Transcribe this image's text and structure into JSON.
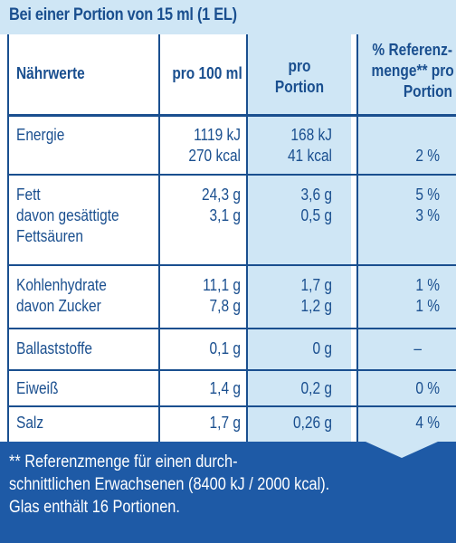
{
  "header": {
    "title": "Bei einer Portion von 15 ml (1 EL)"
  },
  "table": {
    "columns": [
      "Nährwerte",
      "pro 100 ml",
      "pro\nPortion",
      "% Referenz-\nmenge** pro\nPortion"
    ],
    "rows": [
      {
        "name": "Energie",
        "per100": "1119 kJ\n270 kcal",
        "portion": "168 kJ\n41 kcal",
        "ri": "\n2 %"
      },
      {
        "name": "Fett\ndavon gesättigte\nFettsäuren",
        "per100": "24,3 g\n3,1 g",
        "portion": "3,6 g\n0,5 g",
        "ri": "5 %\n3 %"
      },
      {
        "name": "Kohlenhydrate\ndavon Zucker",
        "per100": "11,1 g\n7,8 g",
        "portion": "1,7 g\n1,2 g",
        "ri": "1 %\n1 %"
      },
      {
        "name": "Ballaststoffe",
        "per100": "0,1 g",
        "portion": "0 g",
        "ri": "–"
      },
      {
        "name": "Eiweiß",
        "per100": "1,4 g",
        "portion": "0,2 g",
        "ri": "0 %"
      },
      {
        "name": "Salz",
        "per100": "1,7 g",
        "portion": "0,26 g",
        "ri": "4 %"
      }
    ]
  },
  "footer": {
    "note": "** Referenzmenge für einen durch-\nschnittlichen Erwachsenen (8400 kJ / 2000 kcal).\nGlas enthält 16 Portionen."
  },
  "colors": {
    "text": "#1a4f8f",
    "tint": "#cfe6f5",
    "footer_bg": "#1e5aa6"
  }
}
